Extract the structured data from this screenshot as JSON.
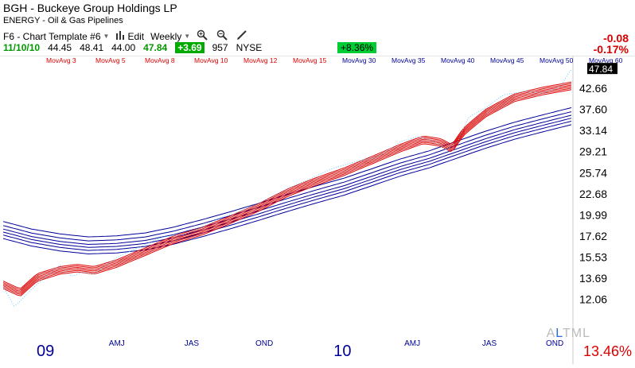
{
  "header": {
    "symbol_title": "BGH - Buckeye Group Holdings LP",
    "sector": "ENERGY - Oil & Gas Pipelines",
    "template": "F6 - Chart Template #6",
    "edit_label": "Edit",
    "period": "Weekly"
  },
  "quote": {
    "date": "11/10/10",
    "open": "44.45",
    "high": "48.41",
    "low": "44.00",
    "last": "47.84",
    "change": "+3.69",
    "volume": "957",
    "exchange": "NYSE",
    "pct_badge": "+8.36%"
  },
  "right_panel": {
    "change_abs": "-0.08",
    "change_pct": "-0.17%",
    "rs_prefix": "A",
    "rs_mid": "L",
    "rs_suffix": "TML",
    "rs_value": "13.46%"
  },
  "colors": {
    "short_ma": "#dd0000",
    "long_ma": "#000099",
    "price": "#66ccff",
    "last_badge_bg": "#000000"
  },
  "chart_data": {
    "type": "line",
    "title": "BGH - Buckeye Group Holdings LP",
    "y_scale": "log",
    "ylim": [
      11.2,
      49.5
    ],
    "yticks": [
      "47.84",
      "42.66",
      "37.60",
      "33.14",
      "29.21",
      "25.74",
      "22.68",
      "19.99",
      "17.62",
      "15.53",
      "13.69",
      "12.06"
    ],
    "last_price_label": "47.84",
    "x_label_groups": [
      {
        "text": "09",
        "t": 0.0,
        "type": "year"
      },
      {
        "text": "AMJ",
        "t": 0.2,
        "type": "quarter"
      },
      {
        "text": "JAS",
        "t": 0.333,
        "type": "quarter"
      },
      {
        "text": "OND",
        "t": 0.458,
        "type": "quarter"
      },
      {
        "text": "10",
        "t": 0.59,
        "type": "year"
      },
      {
        "text": "AMJ",
        "t": 0.72,
        "type": "quarter"
      },
      {
        "text": "JAS",
        "t": 0.857,
        "type": "quarter"
      },
      {
        "text": "OND",
        "t": 1.0,
        "type": "quarter"
      }
    ],
    "legend": [
      "MovAvg 3",
      "MovAvg 5",
      "MovAvg 8",
      "MovAvg 10",
      "MovAvg 12",
      "MovAvg 15",
      "MovAvg 30",
      "MovAvg 35",
      "MovAvg 40",
      "MovAvg 45",
      "MovAvg 50",
      "MovAvg 60"
    ],
    "legend_colors": [
      "#dd0000",
      "#dd0000",
      "#dd0000",
      "#dd0000",
      "#dd0000",
      "#dd0000",
      "#000099",
      "#000099",
      "#000099",
      "#000099",
      "#000099",
      "#000099"
    ],
    "short_base": [
      [
        0,
        13.2
      ],
      [
        0.03,
        12.6
      ],
      [
        0.06,
        13.8
      ],
      [
        0.1,
        14.4
      ],
      [
        0.13,
        14.6
      ],
      [
        0.16,
        14.4
      ],
      [
        0.2,
        15.0
      ],
      [
        0.25,
        16.1
      ],
      [
        0.3,
        17.3
      ],
      [
        0.35,
        18.2
      ],
      [
        0.4,
        19.5
      ],
      [
        0.45,
        21.0
      ],
      [
        0.5,
        22.9
      ],
      [
        0.55,
        24.5
      ],
      [
        0.6,
        26.0
      ],
      [
        0.65,
        27.9
      ],
      [
        0.7,
        30.0
      ],
      [
        0.74,
        31.5
      ],
      [
        0.77,
        31.0
      ],
      [
        0.79,
        29.9
      ],
      [
        0.81,
        33.0
      ],
      [
        0.85,
        37.0
      ],
      [
        0.9,
        40.5
      ],
      [
        0.95,
        42.2
      ],
      [
        1.0,
        43.5
      ]
    ],
    "short_offsets": [
      0.3,
      0.15,
      0.0,
      -0.15,
      -0.3,
      -0.45
    ],
    "long_base": [
      [
        0,
        18.2
      ],
      [
        0.05,
        17.4
      ],
      [
        0.1,
        16.9
      ],
      [
        0.15,
        16.6
      ],
      [
        0.2,
        16.7
      ],
      [
        0.25,
        17.0
      ],
      [
        0.3,
        17.6
      ],
      [
        0.35,
        18.4
      ],
      [
        0.4,
        19.3
      ],
      [
        0.45,
        20.3
      ],
      [
        0.5,
        21.4
      ],
      [
        0.55,
        22.5
      ],
      [
        0.6,
        23.6
      ],
      [
        0.65,
        25.0
      ],
      [
        0.7,
        26.5
      ],
      [
        0.75,
        27.8
      ],
      [
        0.8,
        29.5
      ],
      [
        0.85,
        31.3
      ],
      [
        0.9,
        33.0
      ],
      [
        0.95,
        34.5
      ],
      [
        1.0,
        36.0
      ]
    ],
    "long_offsets": [
      0.9,
      0.5,
      0.15,
      -0.15,
      -0.45,
      -0.8
    ],
    "price": [
      [
        0,
        13.0
      ],
      [
        0.02,
        11.5
      ],
      [
        0.05,
        12.8
      ],
      [
        0.08,
        14.0
      ],
      [
        0.1,
        14.8
      ],
      [
        0.12,
        13.8
      ],
      [
        0.14,
        14.2
      ],
      [
        0.16,
        14.0
      ],
      [
        0.2,
        15.5
      ],
      [
        0.24,
        16.5
      ],
      [
        0.28,
        17.5
      ],
      [
        0.32,
        17.8
      ],
      [
        0.35,
        18.6
      ],
      [
        0.38,
        19.6
      ],
      [
        0.42,
        20.5
      ],
      [
        0.46,
        21.8
      ],
      [
        0.5,
        23.4
      ],
      [
        0.54,
        24.8
      ],
      [
        0.58,
        26.4
      ],
      [
        0.62,
        27.5
      ],
      [
        0.66,
        28.3
      ],
      [
        0.7,
        31.0
      ],
      [
        0.73,
        32.0
      ],
      [
        0.76,
        31.0
      ],
      [
        0.78,
        29.5
      ],
      [
        0.8,
        31.0
      ],
      [
        0.82,
        36.0
      ],
      [
        0.85,
        38.0
      ],
      [
        0.88,
        41.0
      ],
      [
        0.92,
        42.0
      ],
      [
        0.95,
        41.5
      ],
      [
        0.98,
        43.0
      ],
      [
        1.0,
        47.84
      ]
    ]
  }
}
